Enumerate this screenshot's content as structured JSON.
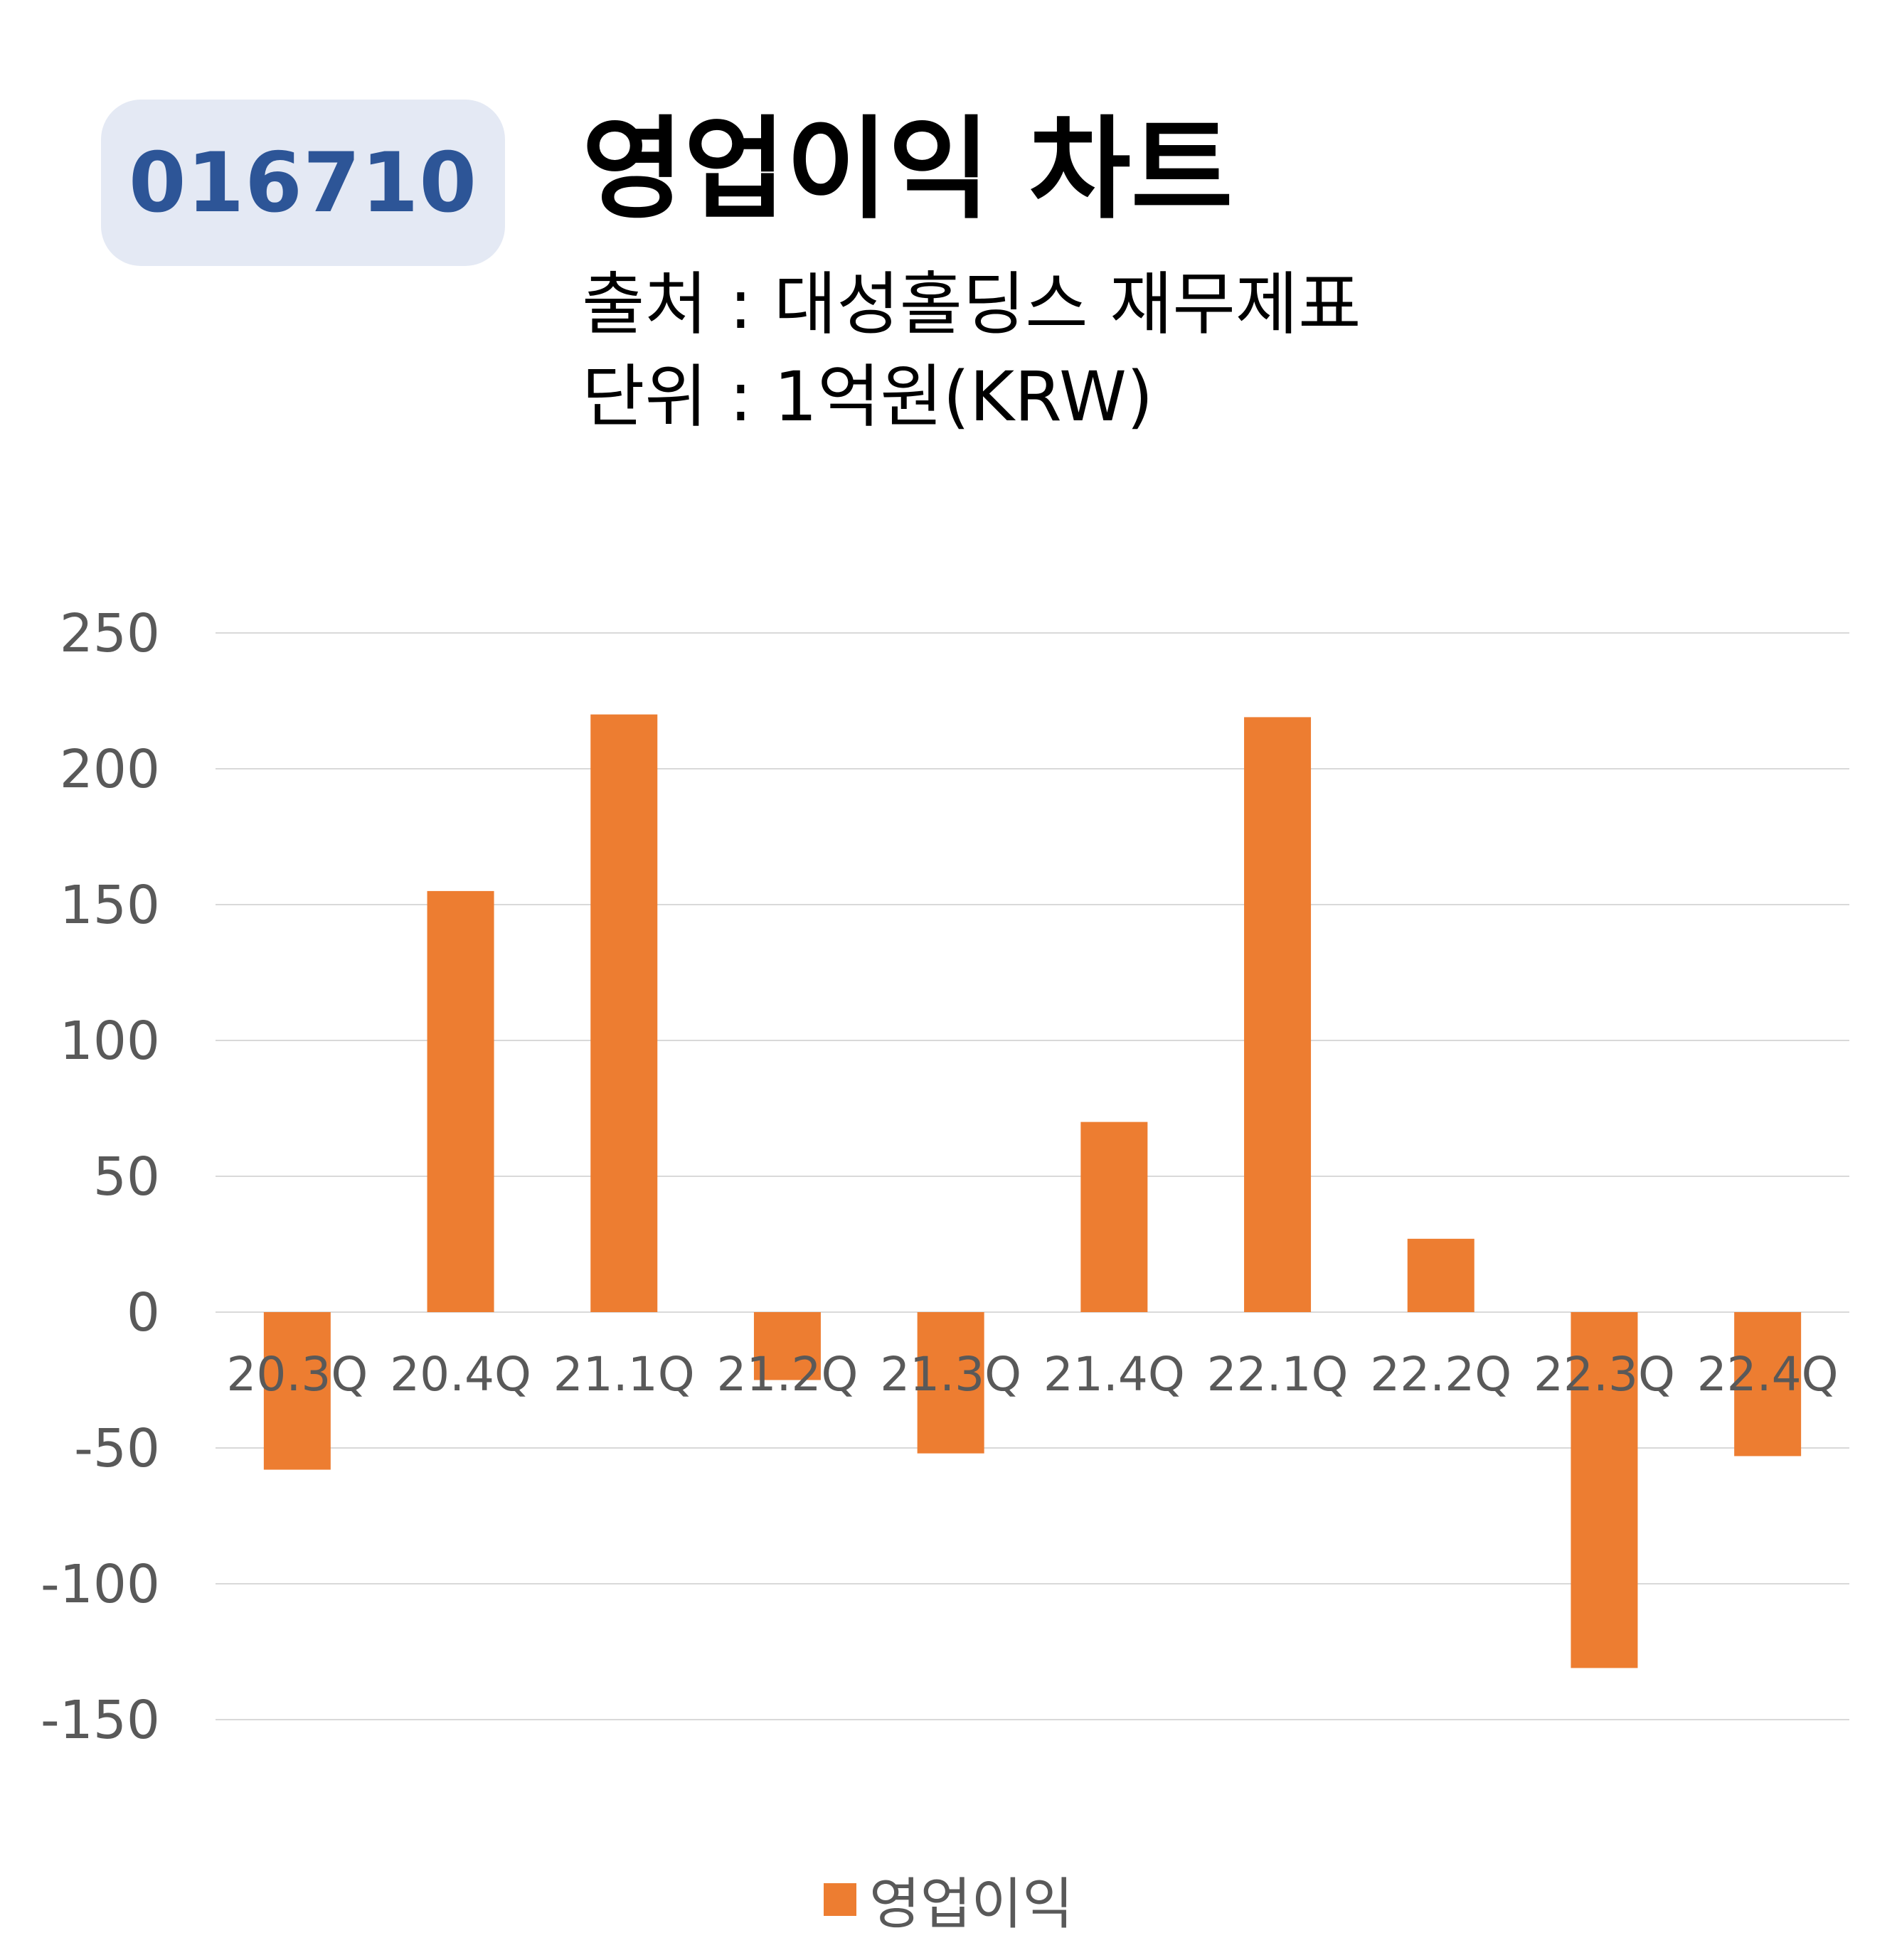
{
  "header": {
    "code": "016710",
    "title": "영업이익 차트",
    "source": "출처 : 대성홀딩스 재무제표",
    "unit": "단위 : 1억원(KRW)"
  },
  "colors": {
    "bar": "#ed7d31",
    "grid": "#d9d9d9",
    "axis_text": "#595959",
    "badge_bg": "#e4e9f4",
    "badge_text": "#2d5597"
  },
  "chart_data": {
    "type": "bar",
    "categories": [
      "20.3Q",
      "20.4Q",
      "21.1Q",
      "21.2Q",
      "21.3Q",
      "21.4Q",
      "22.1Q",
      "22.2Q",
      "22.3Q",
      "22.4Q"
    ],
    "series": [
      {
        "name": "영업이익",
        "values": [
          -58,
          155,
          220,
          -25,
          -52,
          70,
          219,
          27,
          -131,
          -53
        ]
      }
    ],
    "ylim": [
      -150,
      250
    ],
    "yticks": [
      250,
      200,
      150,
      100,
      50,
      0,
      -50,
      -100,
      -150
    ],
    "grid": true,
    "legend": "bottom"
  }
}
